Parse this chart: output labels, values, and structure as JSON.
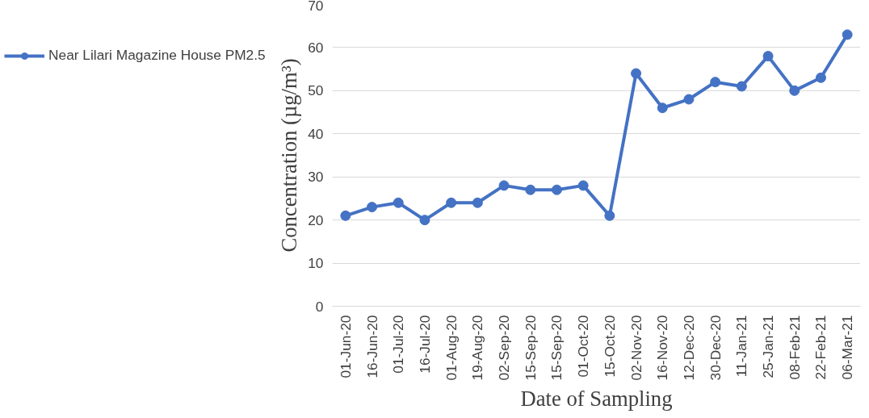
{
  "chart_data": {
    "type": "line",
    "xlabel": "Date of Sampling",
    "ylabel": "Concentration (µg/m³)",
    "categories": [
      "01-Jun-20",
      "16-Jun-20",
      "01-Jul-20",
      "16-Jul-20",
      "01-Aug-20",
      "19-Aug-20",
      "02-Sep-20",
      "15-Sep-20",
      "15-Sep-20",
      "01-Oct-20",
      "15-Oct-20",
      "02-Nov-20",
      "16-Nov-20",
      "12-Dec-20",
      "30-Dec-20",
      "11-Jan-21",
      "25-Jan-21",
      "08-Feb-21",
      "22-Feb-21",
      "06-Mar-21"
    ],
    "series": [
      {
        "name": "Near Lilari Magazine House PM2.5",
        "color": "#4472c4",
        "values": [
          21,
          23,
          24,
          20,
          24,
          24,
          28,
          27,
          27,
          28,
          21,
          54,
          46,
          48,
          52,
          51,
          58,
          50,
          53,
          63
        ]
      }
    ],
    "ylim": [
      0,
      70
    ],
    "yticks": [
      0,
      10,
      20,
      30,
      40,
      50,
      60,
      70
    ],
    "grid": "y",
    "legend": "left",
    "marker": "circle",
    "line_style": "solid"
  }
}
